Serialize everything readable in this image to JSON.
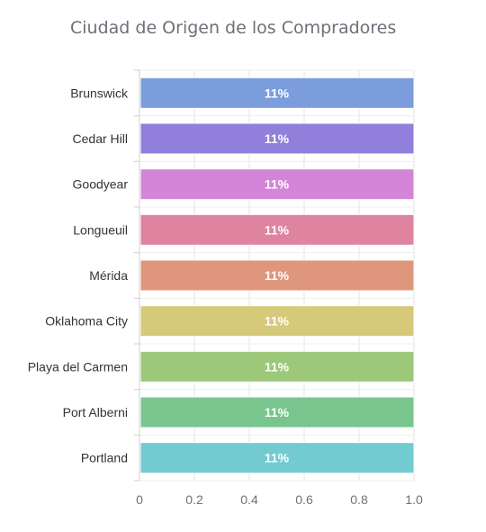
{
  "chart_data": {
    "type": "bar",
    "orientation": "horizontal",
    "title": "Ciudad de Origen de los Compradores",
    "categories": [
      "Brunswick",
      "Cedar Hill",
      "Goodyear",
      "Longueuil",
      "Mérida",
      "Oklahoma City",
      "Playa del Carmen",
      "Port Alberni",
      "Portland"
    ],
    "values": [
      1,
      1,
      1,
      1,
      1,
      1,
      1,
      1,
      1
    ],
    "data_labels": [
      "11%",
      "11%",
      "11%",
      "11%",
      "11%",
      "11%",
      "11%",
      "11%",
      "11%"
    ],
    "colors": [
      "#7b9ddb",
      "#917fdc",
      "#d585d8",
      "#de84a0",
      "#de977c",
      "#d7c97a",
      "#9dc87a",
      "#78c58e",
      "#72cbd1"
    ],
    "xticks": [
      "0",
      "0.2",
      "0.4",
      "0.6",
      "0.8",
      "1.0"
    ],
    "xlim": [
      0,
      1
    ],
    "xlabel": "",
    "ylabel": "",
    "grid": true,
    "legend": "none"
  }
}
